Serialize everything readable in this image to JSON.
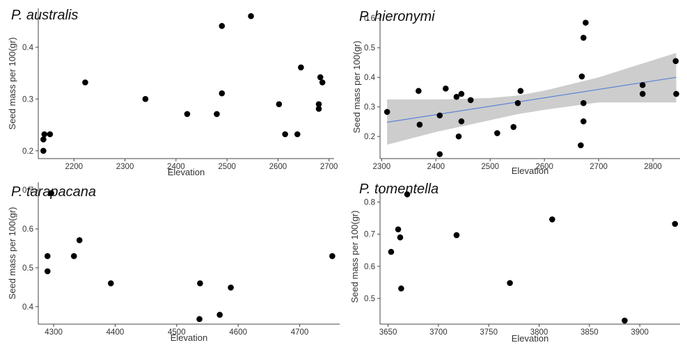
{
  "chart_data": [
    {
      "type": "scatter",
      "title": "P. australis",
      "xlabel": "Elevation",
      "ylabel": "Seed mass per 100(gr)",
      "xlim": [
        2130,
        2710
      ],
      "ylim": [
        0.185,
        0.475
      ],
      "xticks": [
        2200,
        2300,
        2400,
        2500,
        2600,
        2700
      ],
      "yticks": [
        0.2,
        0.3,
        0.4
      ],
      "xtick_labels": [
        "2200",
        "2300",
        "2400",
        "2500",
        "2600",
        "2700"
      ],
      "ytick_labels": [
        "0.2",
        "0.3",
        "0.4"
      ],
      "grid": false,
      "points": [
        {
          "x": 2140,
          "y": 0.2
        },
        {
          "x": 2140,
          "y": 0.222
        },
        {
          "x": 2142,
          "y": 0.232
        },
        {
          "x": 2153,
          "y": 0.232
        },
        {
          "x": 2222,
          "y": 0.332
        },
        {
          "x": 2340,
          "y": 0.3
        },
        {
          "x": 2422,
          "y": 0.271
        },
        {
          "x": 2480,
          "y": 0.271
        },
        {
          "x": 2490,
          "y": 0.311
        },
        {
          "x": 2490,
          "y": 0.441
        },
        {
          "x": 2547,
          "y": 0.46
        },
        {
          "x": 2602,
          "y": 0.29
        },
        {
          "x": 2614,
          "y": 0.232
        },
        {
          "x": 2638,
          "y": 0.232
        },
        {
          "x": 2645,
          "y": 0.361
        },
        {
          "x": 2680,
          "y": 0.29
        },
        {
          "x": 2680,
          "y": 0.281
        },
        {
          "x": 2683,
          "y": 0.342
        },
        {
          "x": 2687,
          "y": 0.332
        }
      ]
    },
    {
      "type": "scatter",
      "title": "P. hieronymi",
      "xlabel": "Elevation",
      "ylabel": "Seed mass per 100(gr)",
      "xlim": [
        2297,
        2850
      ],
      "ylim": [
        0.125,
        0.61
      ],
      "xticks": [
        2300,
        2400,
        2500,
        2600,
        2700,
        2800
      ],
      "yticks": [
        0.2,
        0.3,
        0.4,
        0.5,
        0.6
      ],
      "xtick_labels": [
        "2300",
        "2400",
        "2500",
        "2600",
        "2700",
        "2800"
      ],
      "ytick_labels": [
        "0.2",
        "0.3",
        "0.4",
        "0.5",
        "0.6"
      ],
      "grid": false,
      "points": [
        {
          "x": 2310,
          "y": 0.283
        },
        {
          "x": 2368,
          "y": 0.354
        },
        {
          "x": 2370,
          "y": 0.24
        },
        {
          "x": 2407,
          "y": 0.271
        },
        {
          "x": 2407,
          "y": 0.14
        },
        {
          "x": 2418,
          "y": 0.362
        },
        {
          "x": 2438,
          "y": 0.334
        },
        {
          "x": 2442,
          "y": 0.2
        },
        {
          "x": 2447,
          "y": 0.344
        },
        {
          "x": 2447,
          "y": 0.251
        },
        {
          "x": 2464,
          "y": 0.323
        },
        {
          "x": 2513,
          "y": 0.211
        },
        {
          "x": 2543,
          "y": 0.232
        },
        {
          "x": 2551,
          "y": 0.313
        },
        {
          "x": 2556,
          "y": 0.354
        },
        {
          "x": 2667,
          "y": 0.17
        },
        {
          "x": 2669,
          "y": 0.403
        },
        {
          "x": 2672,
          "y": 0.534
        },
        {
          "x": 2672,
          "y": 0.313
        },
        {
          "x": 2672,
          "y": 0.251
        },
        {
          "x": 2676,
          "y": 0.585
        },
        {
          "x": 2781,
          "y": 0.374
        },
        {
          "x": 2781,
          "y": 0.344
        },
        {
          "x": 2842,
          "y": 0.455
        },
        {
          "x": 2843,
          "y": 0.344
        }
      ],
      "trend": {
        "x1": 2310,
        "y1": 0.248,
        "x2": 2843,
        "y2": 0.4
      },
      "confidence_band": {
        "x": [
          2310,
          2400,
          2500,
          2550,
          2600,
          2700,
          2843
        ],
        "lower": [
          0.172,
          0.215,
          0.255,
          0.275,
          0.29,
          0.315,
          0.315
        ],
        "upper": [
          0.325,
          0.325,
          0.33,
          0.338,
          0.355,
          0.4,
          0.483
        ]
      }
    },
    {
      "type": "scatter",
      "title": "P. tarapacana",
      "xlabel": "Elevation",
      "ylabel": "Seed mass per 100(gr)",
      "xlim": [
        4275,
        4765
      ],
      "ylim": [
        0.355,
        0.72
      ],
      "xticks": [
        4300,
        4400,
        4500,
        4600,
        4700
      ],
      "yticks": [
        0.4,
        0.5,
        0.6,
        0.7
      ],
      "xtick_labels": [
        "4300",
        "4400",
        "4500",
        "4600",
        "4700"
      ],
      "ytick_labels": [
        "0.4",
        "0.5",
        "0.6",
        "0.7"
      ],
      "grid": false,
      "points": [
        {
          "x": 4290,
          "y": 0.53
        },
        {
          "x": 4290,
          "y": 0.491
        },
        {
          "x": 4296,
          "y": 0.692
        },
        {
          "x": 4333,
          "y": 0.53
        },
        {
          "x": 4342,
          "y": 0.571
        },
        {
          "x": 4393,
          "y": 0.46
        },
        {
          "x": 4538,
          "y": 0.46
        },
        {
          "x": 4537,
          "y": 0.368
        },
        {
          "x": 4570,
          "y": 0.379
        },
        {
          "x": 4588,
          "y": 0.449
        },
        {
          "x": 4753,
          "y": 0.53
        }
      ]
    },
    {
      "type": "scatter",
      "title": "P. tomentella",
      "xlabel": "Elevation",
      "ylabel": "Seed mass per 100(gr)",
      "xlim": [
        3642,
        3940
      ],
      "ylim": [
        0.42,
        0.84
      ],
      "xticks": [
        3650,
        3700,
        3750,
        3800,
        3850,
        3900
      ],
      "yticks": [
        0.5,
        0.6,
        0.7,
        0.8
      ],
      "xtick_labels": [
        "3650",
        "3700",
        "3750",
        "3800",
        "3850",
        "3900"
      ],
      "ytick_labels": [
        "0.5",
        "0.6",
        "0.7",
        "0.8"
      ],
      "grid": false,
      "points": [
        {
          "x": 3653,
          "y": 0.645
        },
        {
          "x": 3660,
          "y": 0.715
        },
        {
          "x": 3662,
          "y": 0.69
        },
        {
          "x": 3663,
          "y": 0.531
        },
        {
          "x": 3669,
          "y": 0.824
        },
        {
          "x": 3718,
          "y": 0.697
        },
        {
          "x": 3771,
          "y": 0.548
        },
        {
          "x": 3813,
          "y": 0.746
        },
        {
          "x": 3885,
          "y": 0.431
        },
        {
          "x": 3935,
          "y": 0.732
        }
      ]
    }
  ]
}
